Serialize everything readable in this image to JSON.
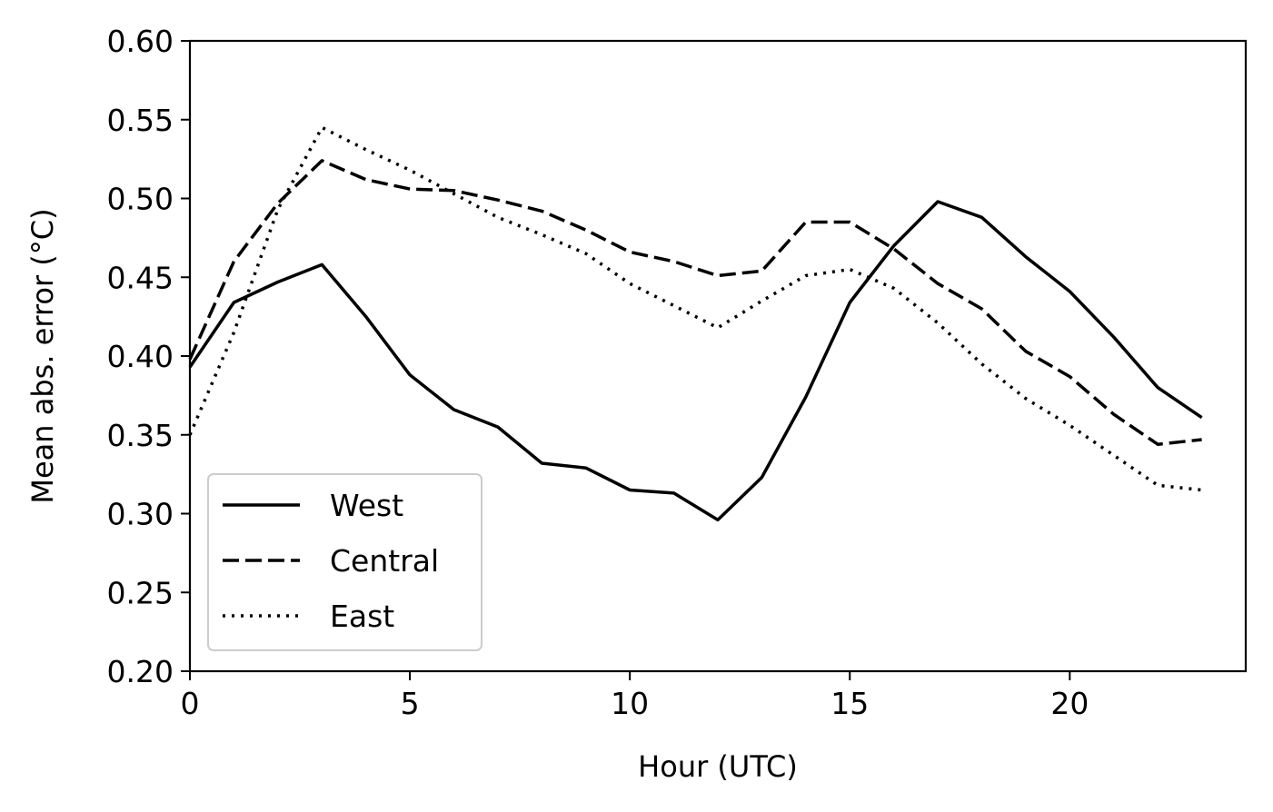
{
  "chart_data": {
    "type": "line",
    "xlabel": "Hour (UTC)",
    "ylabel": "Mean abs. error (°C)",
    "xlim": [
      0,
      24
    ],
    "ylim": [
      0.2,
      0.6
    ],
    "xticks": [
      "0",
      "5",
      "10",
      "15",
      "20"
    ],
    "yticks": [
      "0.20",
      "0.25",
      "0.30",
      "0.35",
      "0.40",
      "0.45",
      "0.50",
      "0.55",
      "0.60"
    ],
    "grid": false,
    "legend_position": "lower-left",
    "x": [
      0,
      1,
      2,
      3,
      4,
      5,
      6,
      7,
      8,
      9,
      10,
      11,
      12,
      13,
      14,
      15,
      16,
      17,
      18,
      19,
      20,
      21,
      22,
      23
    ],
    "series": [
      {
        "name": "West",
        "style": "solid",
        "color": "#000000",
        "values": [
          0.393,
          0.434,
          0.447,
          0.458,
          0.425,
          0.388,
          0.366,
          0.355,
          0.332,
          0.329,
          0.315,
          0.313,
          0.296,
          0.323,
          0.374,
          0.434,
          0.47,
          0.498,
          0.488,
          0.463,
          0.441,
          0.412,
          0.38,
          0.361
        ]
      },
      {
        "name": "Central",
        "style": "dashed",
        "color": "#000000",
        "values": [
          0.398,
          0.46,
          0.497,
          0.524,
          0.512,
          0.506,
          0.505,
          0.499,
          0.492,
          0.48,
          0.466,
          0.46,
          0.451,
          0.454,
          0.485,
          0.485,
          0.468,
          0.446,
          0.43,
          0.403,
          0.387,
          0.363,
          0.344,
          0.347
        ]
      },
      {
        "name": "East",
        "style": "dotted",
        "color": "#000000",
        "values": [
          0.35,
          0.415,
          0.493,
          0.545,
          0.531,
          0.518,
          0.503,
          0.488,
          0.477,
          0.465,
          0.446,
          0.432,
          0.418,
          0.435,
          0.451,
          0.455,
          0.443,
          0.421,
          0.395,
          0.373,
          0.356,
          0.337,
          0.318,
          0.315
        ]
      }
    ]
  }
}
